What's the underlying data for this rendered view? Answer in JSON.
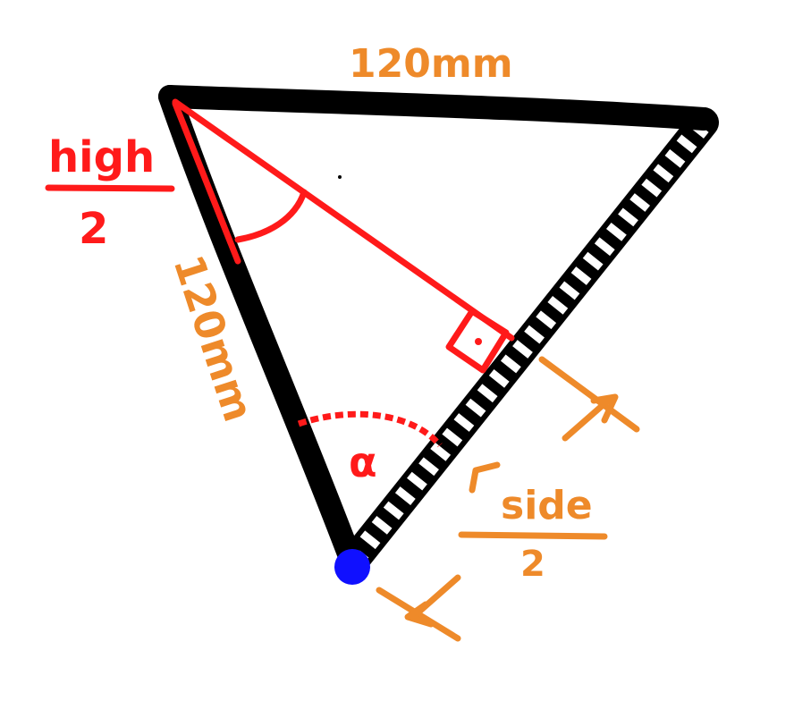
{
  "labels": {
    "top_side": "120mm",
    "left_side": "120mm",
    "high_numerator": "high",
    "high_denominator": "2",
    "side_numerator": "side",
    "side_denominator": "2",
    "angle": "α"
  },
  "colors": {
    "outline": "#000000",
    "height_line": "#ff1a1a",
    "annotation": "#ee8a2a",
    "vertex_dot": "#1010ff"
  }
}
